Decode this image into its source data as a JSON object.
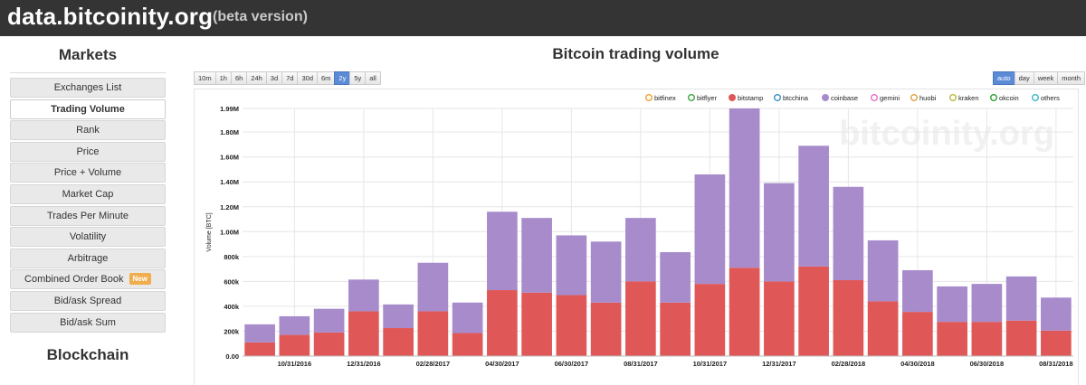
{
  "header": {
    "brand": "data.bitcoinity.org",
    "beta": "(beta version)"
  },
  "sidebar": {
    "markets_heading": "Markets",
    "blockchain_heading": "Blockchain",
    "items": [
      {
        "label": "Exchanges List",
        "active": false
      },
      {
        "label": "Trading Volume",
        "active": true
      },
      {
        "label": "Rank",
        "active": false
      },
      {
        "label": "Price",
        "active": false
      },
      {
        "label": "Price + Volume",
        "active": false
      },
      {
        "label": "Market Cap",
        "active": false
      },
      {
        "label": "Trades Per Minute",
        "active": false
      },
      {
        "label": "Volatility",
        "active": false
      },
      {
        "label": "Arbitrage",
        "active": false
      },
      {
        "label": "Combined Order Book",
        "active": false,
        "badge": "New"
      },
      {
        "label": "Bid/ask Spread",
        "active": false
      },
      {
        "label": "Bid/ask Sum",
        "active": false
      }
    ]
  },
  "chart": {
    "title": "Bitcoin trading volume",
    "ranges": [
      "10m",
      "1h",
      "6h",
      "24h",
      "3d",
      "7d",
      "30d",
      "6m",
      "2y",
      "5y",
      "all"
    ],
    "active_range": "2y",
    "resolutions": [
      "auto",
      "day",
      "week",
      "month"
    ],
    "active_resolution": "auto",
    "watermark": "bitcoinity.org"
  },
  "colors": {
    "bitstamp": "#e05757",
    "coinbase": "#a78bcb",
    "bitfinex": "#f0a030",
    "bitflyer": "#3fa73f",
    "btcchina": "#3f8fc4",
    "gemini": "#e070c8",
    "huobi": "#e0a03f",
    "kraken": "#b8b83f",
    "okcoin": "#2f9f2f",
    "others": "#3fb8c8"
  },
  "chart_data": {
    "type": "bar",
    "stacked": true,
    "title": "Bitcoin trading volume",
    "ylabel": "Volume [BTC]",
    "xlabel": "",
    "ylim": [
      0,
      1990000
    ],
    "y_ticks": [
      0,
      200000,
      400000,
      600000,
      800000,
      1000000,
      1200000,
      1400000,
      1600000,
      1800000,
      1990000
    ],
    "y_tick_labels": [
      "0.00",
      "200k",
      "400k",
      "600k",
      "800k",
      "1.00M",
      "1.20M",
      "1.40M",
      "1.60M",
      "1.80M",
      "1.99M"
    ],
    "x_tick_labels": [
      "10/31/2016",
      "12/31/2016",
      "02/28/2017",
      "04/30/2017",
      "06/30/2017",
      "08/31/2017",
      "10/31/2017",
      "12/31/2017",
      "02/28/2018",
      "04/30/2018",
      "06/30/2018",
      "08/31/2018"
    ],
    "legend": [
      {
        "name": "bitfinex",
        "filled": false
      },
      {
        "name": "bitflyer",
        "filled": false
      },
      {
        "name": "bitstamp",
        "filled": true
      },
      {
        "name": "btcchina",
        "filled": false
      },
      {
        "name": "coinbase",
        "filled": true
      },
      {
        "name": "gemini",
        "filled": false
      },
      {
        "name": "huobi",
        "filled": false
      },
      {
        "name": "kraken",
        "filled": false
      },
      {
        "name": "okcoin",
        "filled": false
      },
      {
        "name": "others",
        "filled": false
      }
    ],
    "series": [
      {
        "name": "bitstamp",
        "values": [
          110000,
          170000,
          190000,
          360000,
          225000,
          360000,
          185000,
          530000,
          510000,
          490000,
          430000,
          600000,
          430000,
          580000,
          710000,
          600000,
          720000,
          610000,
          440000,
          355000,
          275000,
          275000,
          285000,
          205000
        ]
      },
      {
        "name": "coinbase",
        "values": [
          145000,
          150000,
          190000,
          255000,
          190000,
          390000,
          245000,
          630000,
          600000,
          480000,
          490000,
          510000,
          405000,
          880000,
          1280000,
          790000,
          970000,
          750000,
          490000,
          335000,
          285000,
          305000,
          355000,
          265000
        ]
      }
    ]
  }
}
